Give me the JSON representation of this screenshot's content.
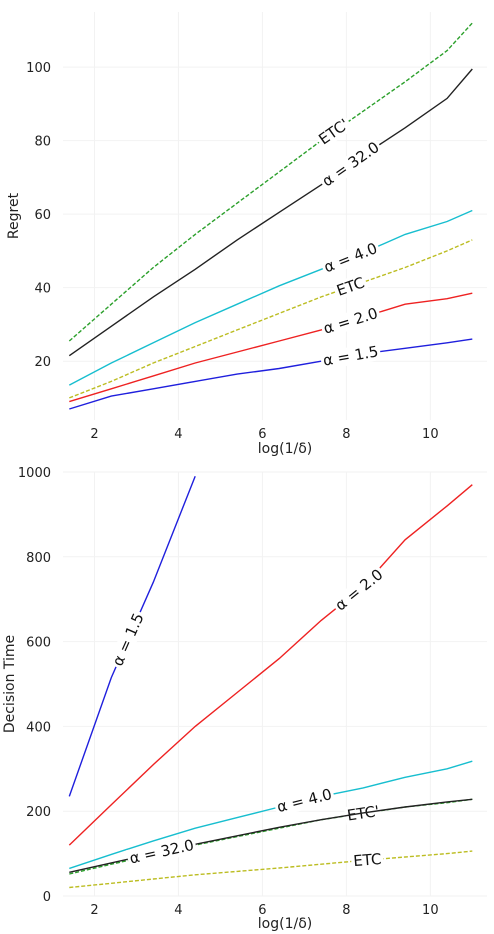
{
  "chart_data": [
    {
      "type": "line",
      "xlabel": "log(1/δ)",
      "ylabel": "Regret",
      "xlim": [
        1.25,
        11.35
      ],
      "ylim": [
        4,
        115
      ],
      "xticks": [
        2,
        4,
        6,
        8,
        10
      ],
      "yticks": [
        20,
        40,
        60,
        80,
        100
      ],
      "grid": true,
      "x": [
        1.4,
        2.4,
        3.4,
        4.4,
        5.4,
        6.4,
        7.4,
        8.4,
        9.4,
        10.4,
        11.0
      ],
      "series": [
        {
          "name": "ETC'",
          "color": "#2ca02c",
          "dash": true,
          "label_x": 7.7,
          "values": [
            25.5,
            35.5,
            45.5,
            54.5,
            63.0,
            71.5,
            80.0,
            88.0,
            96.0,
            104.5,
            112.0
          ]
        },
        {
          "name": "α = 32.0",
          "color": "#222222",
          "dash": false,
          "label_x": 8.1,
          "values": [
            21.5,
            29.5,
            37.5,
            45.0,
            53.0,
            60.5,
            68.0,
            76.0,
            83.5,
            91.5,
            99.5
          ]
        },
        {
          "name": "α = 4.0",
          "color": "#17becf",
          "dash": false,
          "label_x": 8.1,
          "values": [
            13.5,
            19.5,
            25.0,
            30.5,
            35.5,
            40.5,
            45.0,
            49.5,
            54.5,
            58.0,
            61.0
          ]
        },
        {
          "name": "ETC",
          "color": "#bcbd22",
          "dash": true,
          "label_x": 8.1,
          "values": [
            10.0,
            14.5,
            19.5,
            24.0,
            28.5,
            33.0,
            37.5,
            41.5,
            45.5,
            50.0,
            53.0
          ]
        },
        {
          "name": "α = 2.0",
          "color": "#ee2222",
          "dash": false,
          "label_x": 8.1,
          "values": [
            9.0,
            12.5,
            16.0,
            19.5,
            22.5,
            25.5,
            28.5,
            32.0,
            35.5,
            37.0,
            38.5
          ]
        },
        {
          "name": "α = 1.5",
          "color": "#1f1fdd",
          "dash": false,
          "label_x": 8.1,
          "values": [
            7.0,
            10.5,
            12.5,
            14.5,
            16.5,
            18.0,
            20.0,
            22.0,
            23.5,
            25.0,
            26.0
          ]
        }
      ]
    },
    {
      "type": "line",
      "xlabel": "log(1/δ)",
      "ylabel": "Decision Time",
      "xlim": [
        1.25,
        11.35
      ],
      "ylim": [
        0,
        1000
      ],
      "xticks": [
        2,
        4,
        6,
        8,
        10
      ],
      "yticks": [
        0,
        200,
        400,
        600,
        800,
        1000
      ],
      "grid": true,
      "x": [
        1.4,
        2.4,
        3.4,
        4.4,
        5.4,
        6.4,
        7.4,
        8.4,
        9.4,
        10.4,
        11.0
      ],
      "series": [
        {
          "name": "α = 1.5",
          "color": "#1f1fdd",
          "dash": false,
          "label_x": 2.8,
          "values": [
            235,
            515,
            740,
            990,
            null,
            null,
            null,
            null,
            null,
            null,
            null
          ]
        },
        {
          "name": "α = 2.0",
          "color": "#ee2222",
          "dash": false,
          "label_x": 8.3,
          "values": [
            120,
            215,
            310,
            400,
            480,
            560,
            650,
            730,
            840,
            920,
            970
          ]
        },
        {
          "name": "α = 4.0",
          "color": "#17becf",
          "dash": false,
          "label_x": 7.0,
          "values": [
            65,
            98,
            130,
            160,
            185,
            210,
            235,
            255,
            280,
            300,
            318
          ]
        },
        {
          "name": "ETC'",
          "color": "#2ca02c",
          "dash": true,
          "label_x": 8.4,
          "values": [
            52,
            75,
            97,
            120,
            140,
            160,
            180,
            195,
            210,
            220,
            228
          ]
        },
        {
          "name": "α = 32.0",
          "color": "#222222",
          "dash": false,
          "label_x": 3.6,
          "values": [
            56,
            78,
            100,
            122,
            142,
            162,
            180,
            196,
            210,
            222,
            228
          ]
        },
        {
          "name": "ETC",
          "color": "#bcbd22",
          "dash": true,
          "label_x": 8.5,
          "values": [
            20,
            30,
            40,
            50,
            58,
            66,
            75,
            84,
            92,
            100,
            106
          ]
        }
      ]
    }
  ]
}
